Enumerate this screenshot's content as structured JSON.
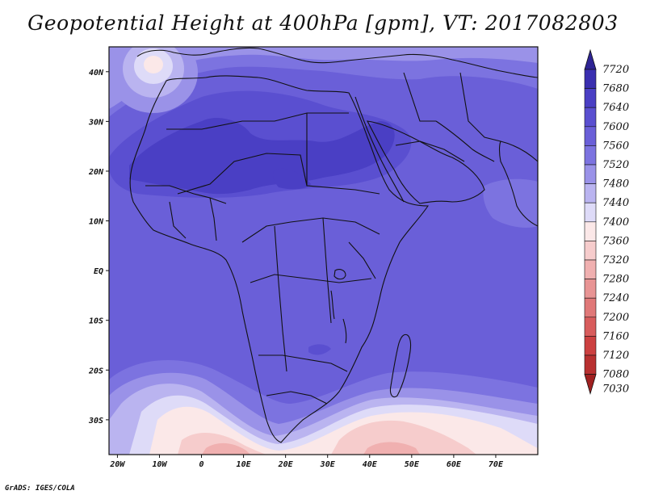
{
  "title": "Geopotential Height at 400hPa [gpm], VT: 2017082803",
  "credit": "GrADS: IGES/COLA",
  "map": {
    "region": "Africa and surrounding seas",
    "lat_range": [
      -37,
      45
    ],
    "lon_range": [
      -22,
      80
    ],
    "lat_ticks": [
      {
        "value": 40,
        "label": "40N"
      },
      {
        "value": 30,
        "label": "30N"
      },
      {
        "value": 20,
        "label": "20N"
      },
      {
        "value": 10,
        "label": "10N"
      },
      {
        "value": 0,
        "label": "EQ"
      },
      {
        "value": -10,
        "label": "10S"
      },
      {
        "value": -20,
        "label": "20S"
      },
      {
        "value": -30,
        "label": "30S"
      }
    ],
    "lon_ticks": [
      {
        "value": -20,
        "label": "20W"
      },
      {
        "value": -10,
        "label": "10W"
      },
      {
        "value": 0,
        "label": "0"
      },
      {
        "value": 10,
        "label": "10E"
      },
      {
        "value": 20,
        "label": "20E"
      },
      {
        "value": 30,
        "label": "30E"
      },
      {
        "value": 40,
        "label": "40E"
      },
      {
        "value": 50,
        "label": "50E"
      },
      {
        "value": 60,
        "label": "60E"
      },
      {
        "value": 70,
        "label": "70E"
      }
    ]
  },
  "colorbar": {
    "levels": [
      {
        "label": "7720",
        "color": "#2e2494"
      },
      {
        "label": "7680",
        "color": "#3a2fb0"
      },
      {
        "label": "7640",
        "color": "#4a3fc4"
      },
      {
        "label": "7600",
        "color": "#5a4fd0"
      },
      {
        "label": "7560",
        "color": "#6a5fd8"
      },
      {
        "label": "7520",
        "color": "#7c73e0"
      },
      {
        "label": "7480",
        "color": "#9a92e8"
      },
      {
        "label": "7440",
        "color": "#bab4f0"
      },
      {
        "label": "7400",
        "color": "#dedbf8"
      },
      {
        "label": "7360",
        "color": "#fbe8e8"
      },
      {
        "label": "7320",
        "color": "#f6cccc"
      },
      {
        "label": "7280",
        "color": "#f0b0b0"
      },
      {
        "label": "7240",
        "color": "#e89494"
      },
      {
        "label": "7200",
        "color": "#e07878"
      },
      {
        "label": "7160",
        "color": "#d85c5c"
      },
      {
        "label": "7120",
        "color": "#cc4040"
      },
      {
        "label": "7080",
        "color": "#b83030"
      },
      {
        "label": "7030",
        "color": "#a02020"
      }
    ]
  },
  "colors": {
    "ocean_base": "#6a5fd8",
    "coast": "#111111"
  }
}
